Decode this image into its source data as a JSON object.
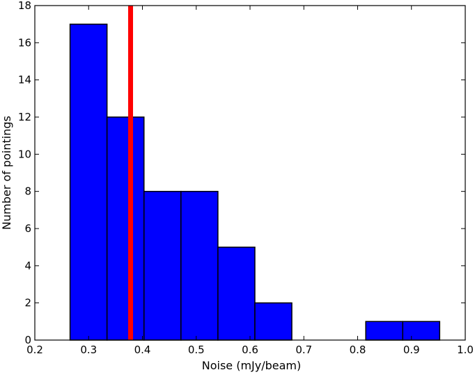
{
  "chart_data": {
    "type": "bar",
    "title": "",
    "xlabel": "Noise (mJy/beam)",
    "ylabel": "Number of pointings",
    "xlim": [
      0.2,
      1.0
    ],
    "ylim": [
      0,
      18
    ],
    "xticks": [
      "0.2",
      "0.3",
      "0.4",
      "0.5",
      "0.6",
      "0.7",
      "0.8",
      "0.9",
      "1.0"
    ],
    "yticks": [
      "0",
      "2",
      "4",
      "6",
      "8",
      "10",
      "12",
      "14",
      "16",
      "18"
    ],
    "bins": [
      {
        "x0": 0.2655,
        "x1": 0.3342,
        "count": 17
      },
      {
        "x0": 0.3342,
        "x1": 0.4029,
        "count": 12
      },
      {
        "x0": 0.4029,
        "x1": 0.4716,
        "count": 8
      },
      {
        "x0": 0.4716,
        "x1": 0.5403,
        "count": 8
      },
      {
        "x0": 0.5403,
        "x1": 0.609,
        "count": 5
      },
      {
        "x0": 0.609,
        "x1": 0.6777,
        "count": 2
      },
      {
        "x0": 0.6777,
        "x1": 0.7464,
        "count": 0
      },
      {
        "x0": 0.7464,
        "x1": 0.8151,
        "count": 0
      },
      {
        "x0": 0.8151,
        "x1": 0.8838,
        "count": 1
      },
      {
        "x0": 0.8838,
        "x1": 0.9525,
        "count": 1
      }
    ],
    "reference_line": {
      "x": 0.378,
      "color": "#ff0000"
    },
    "bar_color": "#0000ff",
    "grid": false
  }
}
